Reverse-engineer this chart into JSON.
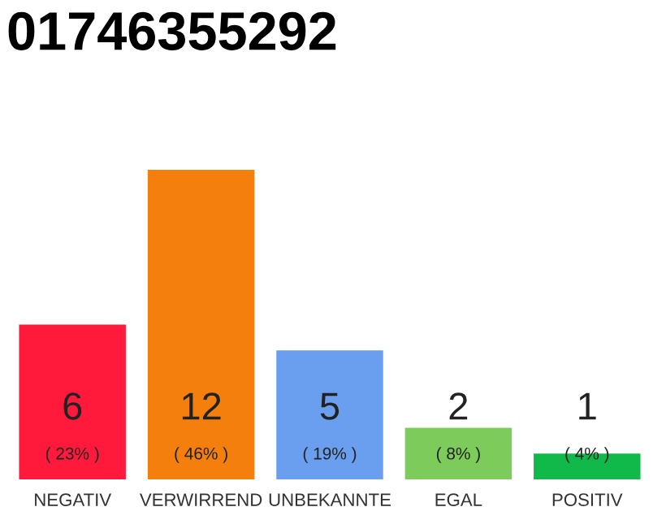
{
  "chart_data": {
    "type": "bar",
    "title": "01746355292",
    "categories": [
      "NEGATIV",
      "VERWIRREND",
      "UNBEKANNTE",
      "EGAL",
      "POSITIV"
    ],
    "values": [
      6,
      12,
      5,
      2,
      1
    ],
    "colors": [
      "#ff1a3c",
      "#f57f0c",
      "#6a9ff0",
      "#7dcb5a",
      "#11b94a"
    ],
    "grid": false,
    "legend": false,
    "tick_labels": "x",
    "value_labels": [
      "6",
      "12",
      "5",
      "2",
      "1"
    ],
    "annotations": [
      "( 23% )",
      "( 46% )",
      "( 19% )",
      "( 8% )",
      "( 4% )"
    ]
  }
}
